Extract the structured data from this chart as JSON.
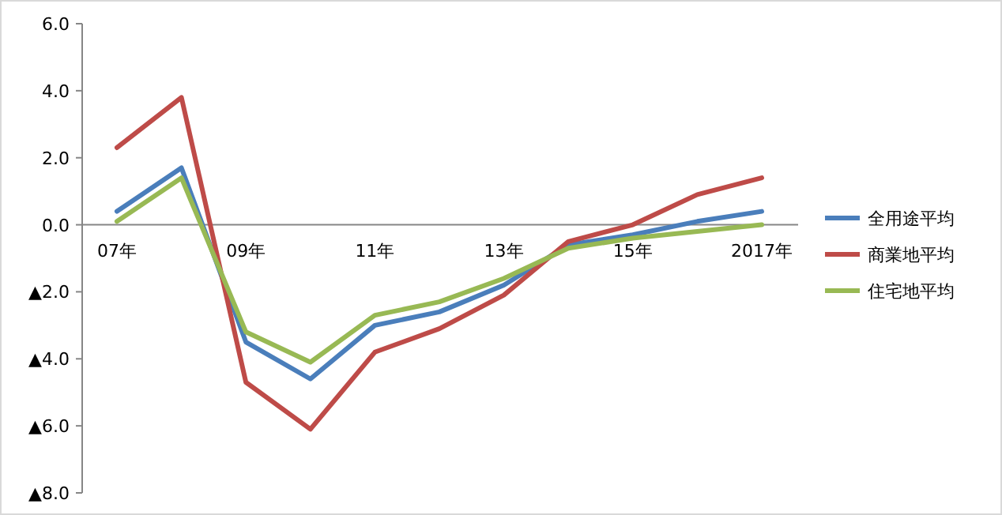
{
  "chart_data": {
    "type": "line",
    "categories": [
      "07年",
      null,
      "09年",
      null,
      "11年",
      null,
      "13年",
      null,
      "15年",
      null,
      "2017年"
    ],
    "series": [
      {
        "name": "全用途平均",
        "color": "#4a7ebb",
        "values": [
          0.4,
          1.7,
          -3.5,
          -4.6,
          -3.0,
          -2.6,
          -1.8,
          -0.6,
          -0.3,
          0.1,
          0.4
        ]
      },
      {
        "name": "商業地平均",
        "color": "#be4b48",
        "values": [
          2.3,
          3.8,
          -4.7,
          -6.1,
          -3.8,
          -3.1,
          -2.1,
          -0.5,
          0.0,
          0.9,
          1.4
        ]
      },
      {
        "name": "住宅地平均",
        "color": "#98b954",
        "values": [
          0.1,
          1.4,
          -3.2,
          -4.1,
          -2.7,
          -2.3,
          -1.6,
          -0.7,
          -0.4,
          -0.2,
          0.0
        ]
      }
    ],
    "ylim": [
      -8,
      6
    ],
    "yticks": [
      {
        "value": 6,
        "label": "6.0"
      },
      {
        "value": 4,
        "label": "4.0"
      },
      {
        "value": 2,
        "label": "2.0"
      },
      {
        "value": 0,
        "label": "0.0"
      },
      {
        "value": -2,
        "label": "▲2.0"
      },
      {
        "value": -4,
        "label": "▲4.0"
      },
      {
        "value": -6,
        "label": "▲6.0"
      },
      {
        "value": -8,
        "label": "▲8.0"
      }
    ],
    "legend": "right",
    "grid": false,
    "marker": "none",
    "line_style": "solid"
  }
}
